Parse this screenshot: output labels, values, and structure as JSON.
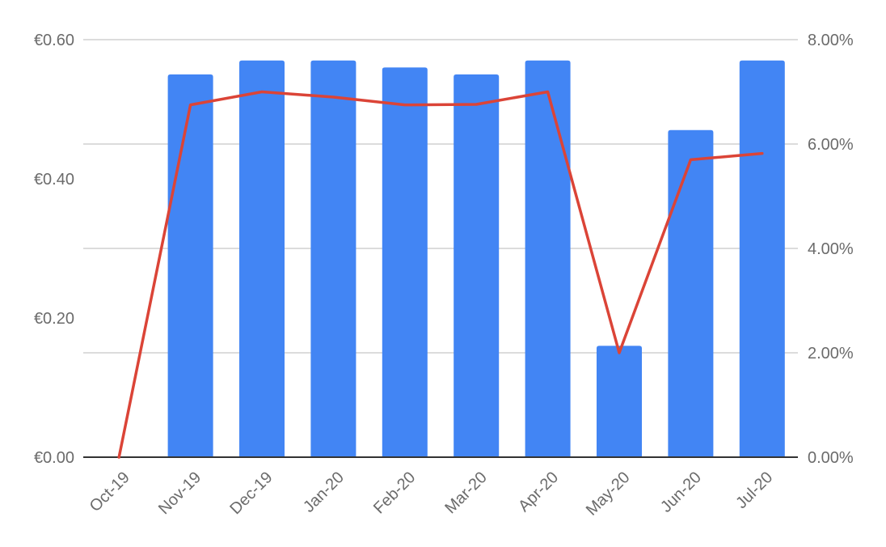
{
  "chart_data": {
    "type": "bar",
    "categories": [
      "Oct-19",
      "Nov-19",
      "Dec-19",
      "Jan-20",
      "Feb-20",
      "Mar-20",
      "Apr-20",
      "May-20",
      "Jun-20",
      "Jul-20"
    ],
    "series": [
      {
        "type": "bar",
        "axis": "left",
        "color": "#4285f4",
        "values": [
          0.0,
          0.55,
          0.57,
          0.57,
          0.56,
          0.55,
          0.57,
          0.16,
          0.47,
          0.57
        ]
      },
      {
        "type": "line",
        "axis": "right",
        "color": "#db4437",
        "values": [
          0.0,
          6.75,
          7.0,
          6.9,
          6.75,
          6.76,
          7.0,
          2.0,
          5.7,
          5.82
        ]
      }
    ],
    "y_left": {
      "ylim": [
        0,
        0.6
      ],
      "ticks": [
        0,
        0.2,
        0.4,
        0.6
      ],
      "tick_labels": [
        "€0.00",
        "€0.20",
        "€0.40",
        "€0.60"
      ]
    },
    "y_right": {
      "ylim": [
        0,
        8
      ],
      "ticks": [
        0,
        2,
        4,
        6,
        8
      ],
      "tick_labels": [
        "0.00%",
        "2.00%",
        "4.00%",
        "6.00%",
        "8.00%"
      ]
    },
    "grid": true,
    "legend": "none",
    "title": "",
    "xlabel": "",
    "ylabel": ""
  }
}
